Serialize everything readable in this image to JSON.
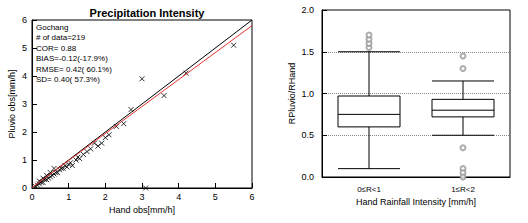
{
  "chart_data": [
    {
      "type": "scatter",
      "title": "Precipitation Intensity",
      "xlabel": "Hand obs[mm/h]",
      "ylabel": "Pluvio obs[mm/h]",
      "annotations": [
        "Gochang",
        "# of data=219",
        "COR= 0.88",
        "BIAS=-0.12(-17.9%)",
        "RMSE= 0.42( 60.1%)",
        "SD= 0.40( 57.3%)"
      ],
      "xlim": [
        0,
        6
      ],
      "ylim": [
        0,
        6
      ],
      "xticks": [
        0,
        1,
        2,
        3,
        4,
        5,
        6
      ],
      "yticks": [
        0,
        1,
        2,
        3,
        4,
        5,
        6
      ],
      "grid": false,
      "series": [
        {
          "type": "scatter",
          "marker": "x",
          "color": "#000000",
          "x": [
            0.1,
            0.15,
            0.2,
            0.2,
            0.25,
            0.3,
            0.3,
            0.35,
            0.4,
            0.4,
            0.45,
            0.5,
            0.5,
            0.55,
            0.6,
            0.6,
            0.65,
            0.7,
            0.75,
            0.8,
            0.85,
            0.9,
            0.95,
            1.0,
            1.05,
            1.1,
            1.2,
            1.25,
            1.3,
            1.4,
            1.5,
            1.6,
            1.7,
            1.8,
            1.9,
            2.0,
            2.1,
            2.3,
            2.5,
            2.7,
            3.0,
            3.1,
            3.6,
            4.2,
            5.5
          ],
          "values": [
            0.05,
            0.1,
            0.15,
            0.25,
            0.2,
            0.2,
            0.35,
            0.3,
            0.3,
            0.45,
            0.35,
            0.4,
            0.55,
            0.45,
            0.5,
            0.7,
            0.55,
            0.55,
            0.65,
            0.7,
            0.7,
            0.8,
            0.75,
            0.85,
            0.9,
            0.8,
            1.0,
            1.1,
            1.05,
            1.2,
            1.3,
            1.4,
            1.6,
            1.5,
            1.6,
            1.8,
            1.9,
            2.2,
            2.3,
            2.8,
            3.9,
            0.0,
            3.3,
            4.1,
            5.1
          ]
        },
        {
          "type": "line",
          "line_style": "solid",
          "color": "#000000",
          "x": [
            0,
            6
          ],
          "values": [
            0,
            6
          ]
        },
        {
          "type": "line",
          "line_style": "solid",
          "color": "#e8312f",
          "x": [
            0,
            6
          ],
          "values": [
            0.02,
            5.8
          ]
        }
      ]
    },
    {
      "type": "boxplot",
      "xlabel": "Hand Rainfall Intensity [mm/h]",
      "ylabel": "RPluvio/RHand",
      "categories": [
        "0≤R<1",
        "1≤R<2"
      ],
      "ylim": [
        0,
        2
      ],
      "yticks": [
        {
          "value": 0,
          "label": "0.0"
        },
        0.5,
        {
          "value": 1,
          "label": "1.0"
        },
        1.5,
        {
          "value": 2,
          "label": "2.0"
        }
      ],
      "grid": true,
      "series": [
        {
          "type": "boxplot",
          "color": "#000000",
          "values": [
            [
              0.1,
              0.6,
              0.75,
              0.97,
              1.5
            ],
            [
              0.5,
              0.72,
              0.8,
              0.93,
              1.15
            ]
          ]
        },
        {
          "type": "scatter",
          "marker": "circle",
          "color": "#999999",
          "values": [
            [
              1.55,
              1.6,
              1.65,
              1.7
            ],
            [
              1.3,
              1.45,
              0.35,
              0.1,
              0.05,
              0.0
            ]
          ]
        }
      ]
    }
  ]
}
